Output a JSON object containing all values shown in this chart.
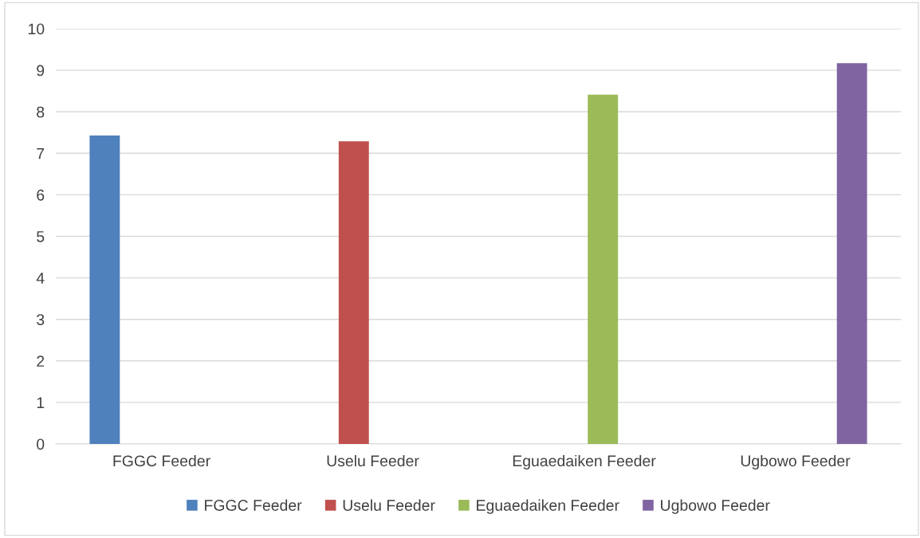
{
  "chart_data": {
    "type": "bar",
    "categories": [
      "FGGC Feeder",
      "Uselu Feeder",
      "Eguaedaiken Feeder",
      "Ugbowo Feeder"
    ],
    "series": [
      {
        "name": "FGGC Feeder",
        "color": "#4f81bd",
        "values": [
          7.43,
          null,
          null,
          null
        ]
      },
      {
        "name": "Uselu Feeder",
        "color": "#c0504d",
        "values": [
          null,
          7.29,
          null,
          null
        ]
      },
      {
        "name": "Eguaedaiken Feeder",
        "color": "#9bbb59",
        "values": [
          null,
          null,
          8.41,
          null
        ]
      },
      {
        "name": "Ugbowo Feeder",
        "color": "#8064a2",
        "values": [
          null,
          null,
          null,
          9.17
        ]
      }
    ],
    "ylim": [
      0,
      10
    ],
    "yticks": [
      0,
      1,
      2,
      3,
      4,
      5,
      6,
      7,
      8,
      9,
      10
    ],
    "grid": "y",
    "legend": "bottom"
  }
}
